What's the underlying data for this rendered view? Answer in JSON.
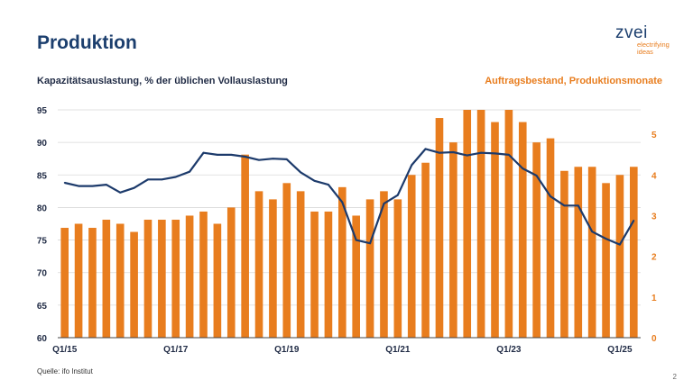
{
  "header": {
    "title": "Produktion",
    "logo_word": "zvei",
    "logo_tagline_1": "electrifying",
    "logo_tagline_2": "ideas"
  },
  "footer": {
    "source": "Quelle: ifo Institut",
    "page_number": "2"
  },
  "colors": {
    "title": "#1c3f6e",
    "bars": "#e87d1e",
    "line": "#1c3a6b",
    "right_axis": "#e87d1e"
  },
  "chart_data": {
    "type": "bar+line",
    "left_axis_label": "Kapazitätsauslastung, % der üblichen Vollauslastung",
    "right_axis_label": "Auftragsbestand, Produktionsmonate",
    "left_ylim": [
      60,
      95
    ],
    "left_ticks": [
      60,
      65,
      70,
      75,
      80,
      85,
      90,
      95
    ],
    "right_ylim": [
      0,
      5.6
    ],
    "right_ticks": [
      0,
      1,
      2,
      3,
      4,
      5
    ],
    "grid": true,
    "x_tick_labels": [
      {
        "index": 0,
        "label": "Q1/15"
      },
      {
        "index": 8,
        "label": "Q1/17"
      },
      {
        "index": 16,
        "label": "Q1/19"
      },
      {
        "index": 24,
        "label": "Q1/21"
      },
      {
        "index": 32,
        "label": "Q1/23"
      },
      {
        "index": 40,
        "label": "Q1/25"
      }
    ],
    "categories": [
      "Q1/15",
      "Q2/15",
      "Q3/15",
      "Q4/15",
      "Q1/16",
      "Q2/16",
      "Q3/16",
      "Q4/16",
      "Q1/17",
      "Q2/17",
      "Q3/17",
      "Q4/17",
      "Q1/18",
      "Q2/18",
      "Q3/18",
      "Q4/18",
      "Q1/19",
      "Q2/19",
      "Q3/19",
      "Q4/19",
      "Q1/20",
      "Q2/20",
      "Q3/20",
      "Q4/20",
      "Q1/21",
      "Q2/21",
      "Q3/21",
      "Q4/21",
      "Q1/22",
      "Q2/22",
      "Q3/22",
      "Q4/22",
      "Q1/23",
      "Q2/23",
      "Q3/23",
      "Q4/23",
      "Q1/24",
      "Q2/24",
      "Q3/24",
      "Q4/24",
      "Q1/25",
      "Q2/25"
    ],
    "series": [
      {
        "type": "bar",
        "axis": "right",
        "values": [
          2.7,
          2.8,
          2.7,
          2.9,
          2.8,
          2.6,
          2.9,
          2.9,
          2.9,
          3.0,
          3.1,
          2.8,
          3.2,
          4.5,
          3.6,
          3.4,
          3.8,
          3.6,
          3.1,
          3.1,
          3.7,
          3.0,
          3.4,
          3.6,
          3.4,
          4.0,
          4.3,
          5.4,
          4.8,
          5.6,
          5.6,
          5.3,
          5.6,
          5.3,
          4.8,
          4.9,
          4.1,
          4.2,
          4.2,
          3.8,
          4.0,
          4.2
        ]
      },
      {
        "type": "line",
        "axis": "left",
        "values": [
          83.8,
          83.3,
          83.3,
          83.5,
          82.3,
          83.0,
          84.3,
          84.3,
          84.7,
          85.5,
          88.4,
          88.1,
          88.1,
          87.8,
          87.3,
          87.5,
          87.4,
          85.4,
          84.1,
          83.5,
          80.8,
          75.0,
          74.5,
          80.6,
          81.9,
          86.5,
          89.0,
          88.4,
          88.5,
          88.0,
          88.4,
          88.3,
          88.1,
          86.0,
          84.9,
          81.7,
          80.3,
          80.3,
          76.3,
          75.2,
          74.3,
          78.0
        ]
      }
    ]
  }
}
